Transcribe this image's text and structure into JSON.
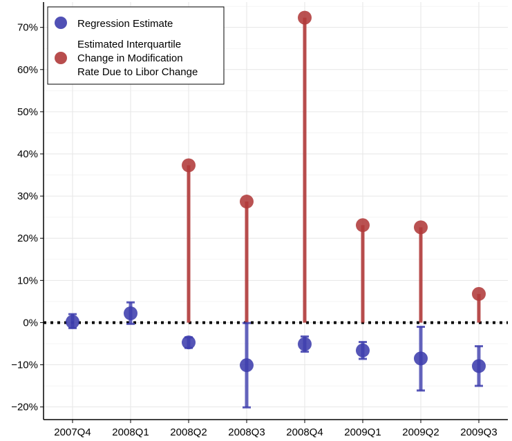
{
  "chart_data": {
    "type": "scatter",
    "categories": [
      "2007Q4",
      "2008Q1",
      "2008Q2",
      "2008Q3",
      "2008Q4",
      "2009Q1",
      "2009Q2",
      "2009Q3"
    ],
    "ylim": [
      -23,
      76
    ],
    "yticks": [
      -20,
      -10,
      0,
      10,
      20,
      30,
      40,
      50,
      60,
      70
    ],
    "ytick_labels": [
      "−20%",
      "−10%",
      "0%",
      "10%",
      "20%",
      "30%",
      "40%",
      "50%",
      "60%",
      "70%"
    ],
    "grid": true,
    "zero_line": "dotted",
    "legend_position": "top-left",
    "series": [
      {
        "name": "Regression Estimate",
        "color": "#3d3dad",
        "style": "point-with-errorbar",
        "values": [
          0.2,
          2.2,
          -4.7,
          -10.1,
          -5.1,
          -6.6,
          -8.5,
          -10.3
        ],
        "ci_low": [
          -1.3,
          -0.3,
          -6.0,
          -20.1,
          -6.9,
          -8.6,
          -16.1,
          -15.0
        ],
        "ci_high": [
          2.0,
          4.8,
          -3.5,
          -0.1,
          -3.3,
          -4.6,
          -1.0,
          -5.6
        ]
      },
      {
        "name": "Estimated Interquartile Change in Modification Rate Due to Libor Change",
        "legend_lines": [
          "Estimated Interquartile",
          "Change in Modification",
          "Rate Due to Libor Change"
        ],
        "color": "#b03a3a",
        "style": "lollipop",
        "values": [
          null,
          null,
          37.3,
          28.7,
          72.3,
          23.1,
          22.6,
          6.8
        ]
      }
    ]
  }
}
